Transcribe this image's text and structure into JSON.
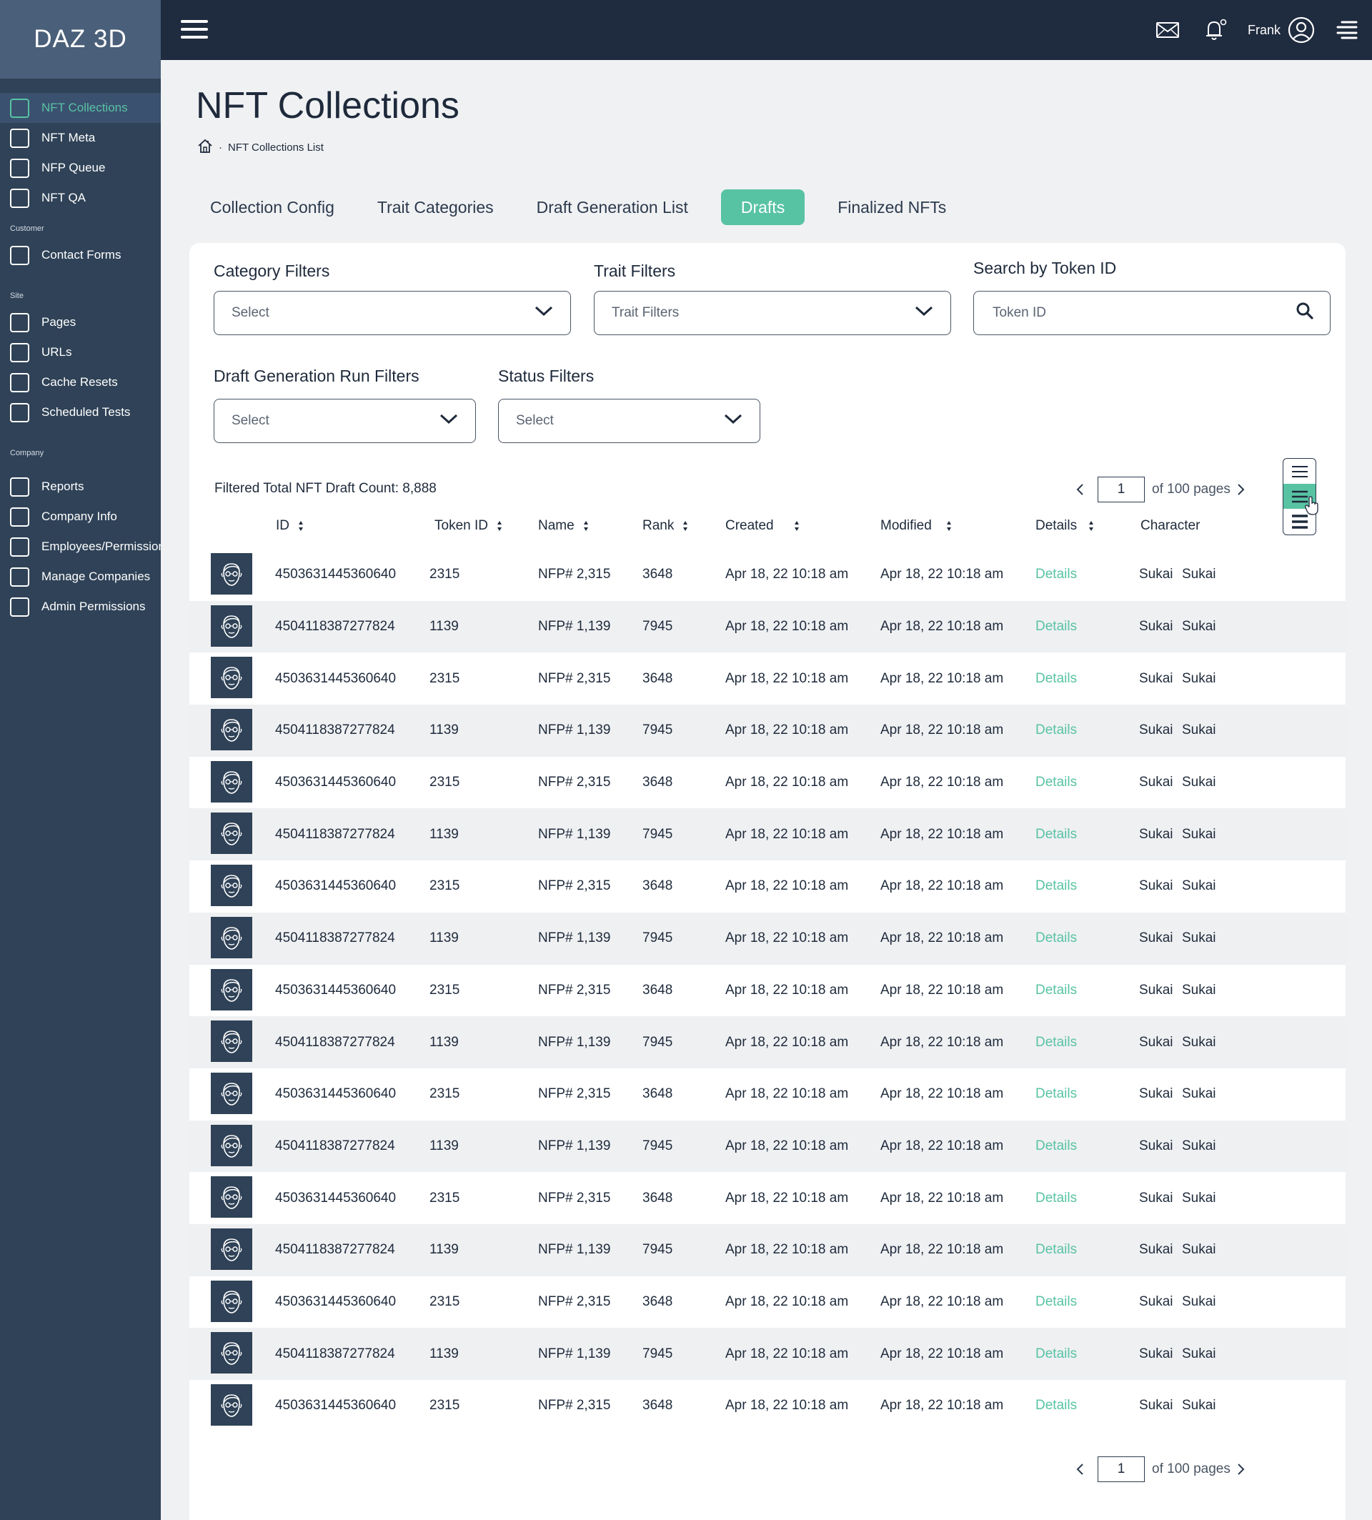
{
  "app": {
    "logo": "DAZ 3D"
  },
  "sidebar": {
    "items_top": [
      {
        "label": "NFT Collections",
        "active": true
      },
      {
        "label": "NFT Meta"
      },
      {
        "label": "NFP Queue"
      },
      {
        "label": "NFT QA"
      }
    ],
    "section_customer": "Customer",
    "items_customer": [
      {
        "label": "Contact Forms"
      }
    ],
    "section_site": "Site",
    "items_site": [
      {
        "label": "Pages"
      },
      {
        "label": "URLs"
      },
      {
        "label": "Cache Resets"
      },
      {
        "label": "Scheduled Tests"
      }
    ],
    "section_company": "Company",
    "items_company": [
      {
        "label": "Reports"
      },
      {
        "label": "Company Info"
      },
      {
        "label": "Employees/Permissions"
      },
      {
        "label": "Manage Companies"
      },
      {
        "label": "Admin Permissions"
      }
    ]
  },
  "header": {
    "user_name": "Frank"
  },
  "page": {
    "title": "NFT Collections",
    "breadcrumb": "NFT Collections List"
  },
  "tabs": [
    "Collection Config",
    "Trait Categories",
    "Draft Generation List",
    "Drafts",
    "Finalized NFTs"
  ],
  "active_tab": "Drafts",
  "filters": {
    "category": {
      "label": "Category Filters",
      "value": "Select"
    },
    "trait": {
      "label": "Trait Filters",
      "value": "Trait Filters"
    },
    "token": {
      "label": "Search by Token ID",
      "placeholder": "Token ID"
    },
    "draft_run": {
      "label": "Draft Generation Run Filters",
      "value": "Select"
    },
    "status": {
      "label": "Status Filters",
      "value": "Select"
    }
  },
  "count_text": "Filtered Total NFT Draft Count: 8,888",
  "pagination": {
    "page": "1",
    "of_text": "of 100 pages"
  },
  "table": {
    "headers": {
      "id": "ID",
      "token_id": "Token ID",
      "name": "Name",
      "rank": "Rank",
      "created": "Created",
      "modified": "Modified",
      "details": "Details",
      "character": "Character"
    },
    "rows": [
      {
        "id": "4503631445360640",
        "token_id": "2315",
        "name": "NFP# 2,315",
        "rank": "3648",
        "created": "Apr 18, 22 10:18 am",
        "modified": "Apr 18, 22 10:18 am",
        "details": "Details",
        "char1": "Sukai",
        "char2": "Sukai"
      },
      {
        "id": "4504118387277824",
        "token_id": "1139",
        "name": "NFP# 1,139",
        "rank": "7945",
        "created": "Apr 18, 22 10:18 am",
        "modified": "Apr 18, 22 10:18 am",
        "details": "Details",
        "char1": "Sukai",
        "char2": "Sukai"
      },
      {
        "id": "4503631445360640",
        "token_id": "2315",
        "name": "NFP# 2,315",
        "rank": "3648",
        "created": "Apr 18, 22 10:18 am",
        "modified": "Apr 18, 22 10:18 am",
        "details": "Details",
        "char1": "Sukai",
        "char2": "Sukai"
      },
      {
        "id": "4504118387277824",
        "token_id": "1139",
        "name": "NFP# 1,139",
        "rank": "7945",
        "created": "Apr 18, 22 10:18 am",
        "modified": "Apr 18, 22 10:18 am",
        "details": "Details",
        "char1": "Sukai",
        "char2": "Sukai"
      },
      {
        "id": "4503631445360640",
        "token_id": "2315",
        "name": "NFP# 2,315",
        "rank": "3648",
        "created": "Apr 18, 22 10:18 am",
        "modified": "Apr 18, 22 10:18 am",
        "details": "Details",
        "char1": "Sukai",
        "char2": "Sukai"
      },
      {
        "id": "4504118387277824",
        "token_id": "1139",
        "name": "NFP# 1,139",
        "rank": "7945",
        "created": "Apr 18, 22 10:18 am",
        "modified": "Apr 18, 22 10:18 am",
        "details": "Details",
        "char1": "Sukai",
        "char2": "Sukai"
      },
      {
        "id": "4503631445360640",
        "token_id": "2315",
        "name": "NFP# 2,315",
        "rank": "3648",
        "created": "Apr 18, 22 10:18 am",
        "modified": "Apr 18, 22 10:18 am",
        "details": "Details",
        "char1": "Sukai",
        "char2": "Sukai"
      },
      {
        "id": "4504118387277824",
        "token_id": "1139",
        "name": "NFP# 1,139",
        "rank": "7945",
        "created": "Apr 18, 22 10:18 am",
        "modified": "Apr 18, 22 10:18 am",
        "details": "Details",
        "char1": "Sukai",
        "char2": "Sukai"
      },
      {
        "id": "4503631445360640",
        "token_id": "2315",
        "name": "NFP# 2,315",
        "rank": "3648",
        "created": "Apr 18, 22 10:18 am",
        "modified": "Apr 18, 22 10:18 am",
        "details": "Details",
        "char1": "Sukai",
        "char2": "Sukai"
      },
      {
        "id": "4504118387277824",
        "token_id": "1139",
        "name": "NFP# 1,139",
        "rank": "7945",
        "created": "Apr 18, 22 10:18 am",
        "modified": "Apr 18, 22 10:18 am",
        "details": "Details",
        "char1": "Sukai",
        "char2": "Sukai"
      },
      {
        "id": "4503631445360640",
        "token_id": "2315",
        "name": "NFP# 2,315",
        "rank": "3648",
        "created": "Apr 18, 22 10:18 am",
        "modified": "Apr 18, 22 10:18 am",
        "details": "Details",
        "char1": "Sukai",
        "char2": "Sukai"
      },
      {
        "id": "4504118387277824",
        "token_id": "1139",
        "name": "NFP# 1,139",
        "rank": "7945",
        "created": "Apr 18, 22 10:18 am",
        "modified": "Apr 18, 22 10:18 am",
        "details": "Details",
        "char1": "Sukai",
        "char2": "Sukai"
      },
      {
        "id": "4503631445360640",
        "token_id": "2315",
        "name": "NFP# 2,315",
        "rank": "3648",
        "created": "Apr 18, 22 10:18 am",
        "modified": "Apr 18, 22 10:18 am",
        "details": "Details",
        "char1": "Sukai",
        "char2": "Sukai"
      },
      {
        "id": "4504118387277824",
        "token_id": "1139",
        "name": "NFP# 1,139",
        "rank": "7945",
        "created": "Apr 18, 22 10:18 am",
        "modified": "Apr 18, 22 10:18 am",
        "details": "Details",
        "char1": "Sukai",
        "char2": "Sukai"
      },
      {
        "id": "4503631445360640",
        "token_id": "2315",
        "name": "NFP# 2,315",
        "rank": "3648",
        "created": "Apr 18, 22 10:18 am",
        "modified": "Apr 18, 22 10:18 am",
        "details": "Details",
        "char1": "Sukai",
        "char2": "Sukai"
      },
      {
        "id": "4504118387277824",
        "token_id": "1139",
        "name": "NFP# 1,139",
        "rank": "7945",
        "created": "Apr 18, 22 10:18 am",
        "modified": "Apr 18, 22 10:18 am",
        "details": "Details",
        "char1": "Sukai",
        "char2": "Sukai"
      },
      {
        "id": "4503631445360640",
        "token_id": "2315",
        "name": "NFP# 2,315",
        "rank": "3648",
        "created": "Apr 18, 22 10:18 am",
        "modified": "Apr 18, 22 10:18 am",
        "details": "Details",
        "char1": "Sukai",
        "char2": "Sukai"
      }
    ]
  },
  "colors": {
    "accent": "#58c3a3",
    "sidebar": "#2f4257",
    "topbar": "#1f2b3f"
  },
  "icons": {
    "menu": "hamburger-icon",
    "mail": "mail-icon",
    "bell": "bell-icon",
    "user": "user-circle-icon",
    "side_menu": "side-menu-icon",
    "home": "home-icon",
    "chevron": "chevron-down-icon",
    "search": "search-icon",
    "sort": "sort-icon",
    "avatar": "face-avatar-icon",
    "density": "density-icon",
    "cursor": "hand-cursor-icon"
  }
}
